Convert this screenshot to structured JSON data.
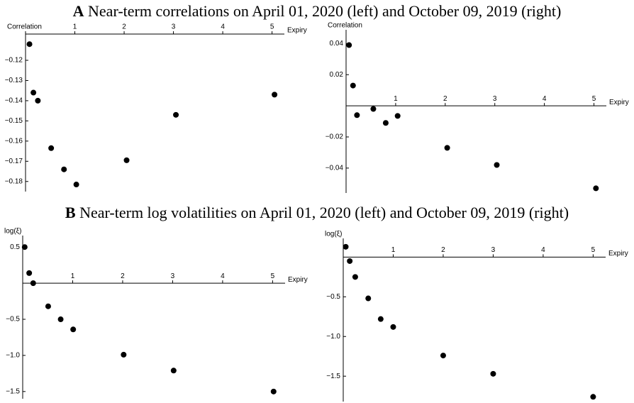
{
  "headings": [
    {
      "letter": "A",
      "text": "Near-term correlations on April 01, 2020 (left) and October 09, 2019 (right)"
    },
    {
      "letter": "B",
      "text": "Near-term log volatilities on April 01, 2020 (left) and October 09, 2019 (right)"
    }
  ],
  "chart_data": [
    {
      "type": "scatter",
      "xlabel": "Expiry",
      "ylabel": "Correlation",
      "color": "#000000",
      "x": [
        0.08,
        0.16,
        0.25,
        0.52,
        0.78,
        1.03,
        2.05,
        3.05,
        5.05
      ],
      "values": [
        -0.112,
        -0.136,
        -0.14,
        -0.1635,
        -0.174,
        -0.1815,
        -0.1695,
        -0.147,
        -0.137
      ],
      "xlim": [
        0,
        5.25
      ],
      "ylim": [
        -0.185,
        -0.107
      ],
      "xticks": [
        1,
        2,
        3,
        4,
        5
      ],
      "yticks": [
        {
          "value": -0.12,
          "label": "−0.12"
        },
        {
          "value": -0.13,
          "label": "−0.13"
        },
        {
          "value": -0.14,
          "label": "−0.14"
        },
        {
          "value": -0.15,
          "label": "−0.15"
        },
        {
          "value": -0.16,
          "label": "−0.16"
        },
        {
          "value": -0.17,
          "label": "−0.17"
        },
        {
          "value": -0.18,
          "label": "−0.18"
        }
      ]
    },
    {
      "type": "scatter",
      "xlabel": "Expiry",
      "ylabel": "Correlation",
      "color": "#000000",
      "x": [
        0.06,
        0.14,
        0.22,
        0.55,
        0.8,
        1.04,
        2.04,
        3.04,
        5.04
      ],
      "values": [
        0.039,
        0.013,
        -0.006,
        -0.002,
        -0.011,
        -0.0065,
        -0.027,
        -0.038,
        -0.053
      ],
      "xlim": [
        0,
        5.25
      ],
      "ylim": [
        -0.056,
        0.047
      ],
      "xticks": [
        1,
        2,
        3,
        4,
        5
      ],
      "yticks": [
        0.04,
        0.02,
        {
          "value": -0.02,
          "label": "−0.02"
        },
        {
          "value": -0.04,
          "label": "−0.04"
        }
      ]
    },
    {
      "type": "scatter",
      "xlabel": "Expiry",
      "ylabel": "log(ξ)",
      "color": "#000000",
      "x": [
        0.04,
        0.13,
        0.21,
        0.51,
        0.76,
        1.01,
        2.02,
        3.02,
        5.02
      ],
      "values": [
        0.5,
        0.14,
        0.0,
        -0.32,
        -0.5,
        -0.64,
        -0.99,
        -1.21,
        -1.5
      ],
      "xlim": [
        0,
        5.25
      ],
      "ylim": [
        -1.6,
        0.62
      ],
      "xticks": [
        1,
        2,
        3,
        4,
        5
      ],
      "yticks": [
        0.5,
        {
          "value": -0.5,
          "label": "−0.5"
        },
        {
          "value": -1,
          "label": "−1.0"
        },
        {
          "value": -1.5,
          "label": "−1.5"
        }
      ]
    },
    {
      "type": "scatter",
      "xlabel": "Expiry",
      "ylabel": "log(ξ)",
      "color": "#000000",
      "x": [
        0.05,
        0.13,
        0.24,
        0.5,
        0.75,
        1.0,
        2.0,
        3.0,
        5.0
      ],
      "values": [
        0.13,
        -0.05,
        -0.25,
        -0.52,
        -0.78,
        -0.88,
        -1.24,
        -1.47,
        -1.76
      ],
      "xlim": [
        0,
        5.25
      ],
      "ylim": [
        -1.82,
        0.2
      ],
      "xticks": [
        1,
        2,
        3,
        4,
        5
      ],
      "yticks": [
        {
          "value": -0.5,
          "label": "−0.5"
        },
        {
          "value": -1,
          "label": "−1.0"
        },
        {
          "value": -1.5,
          "label": "−1.5"
        }
      ]
    }
  ]
}
